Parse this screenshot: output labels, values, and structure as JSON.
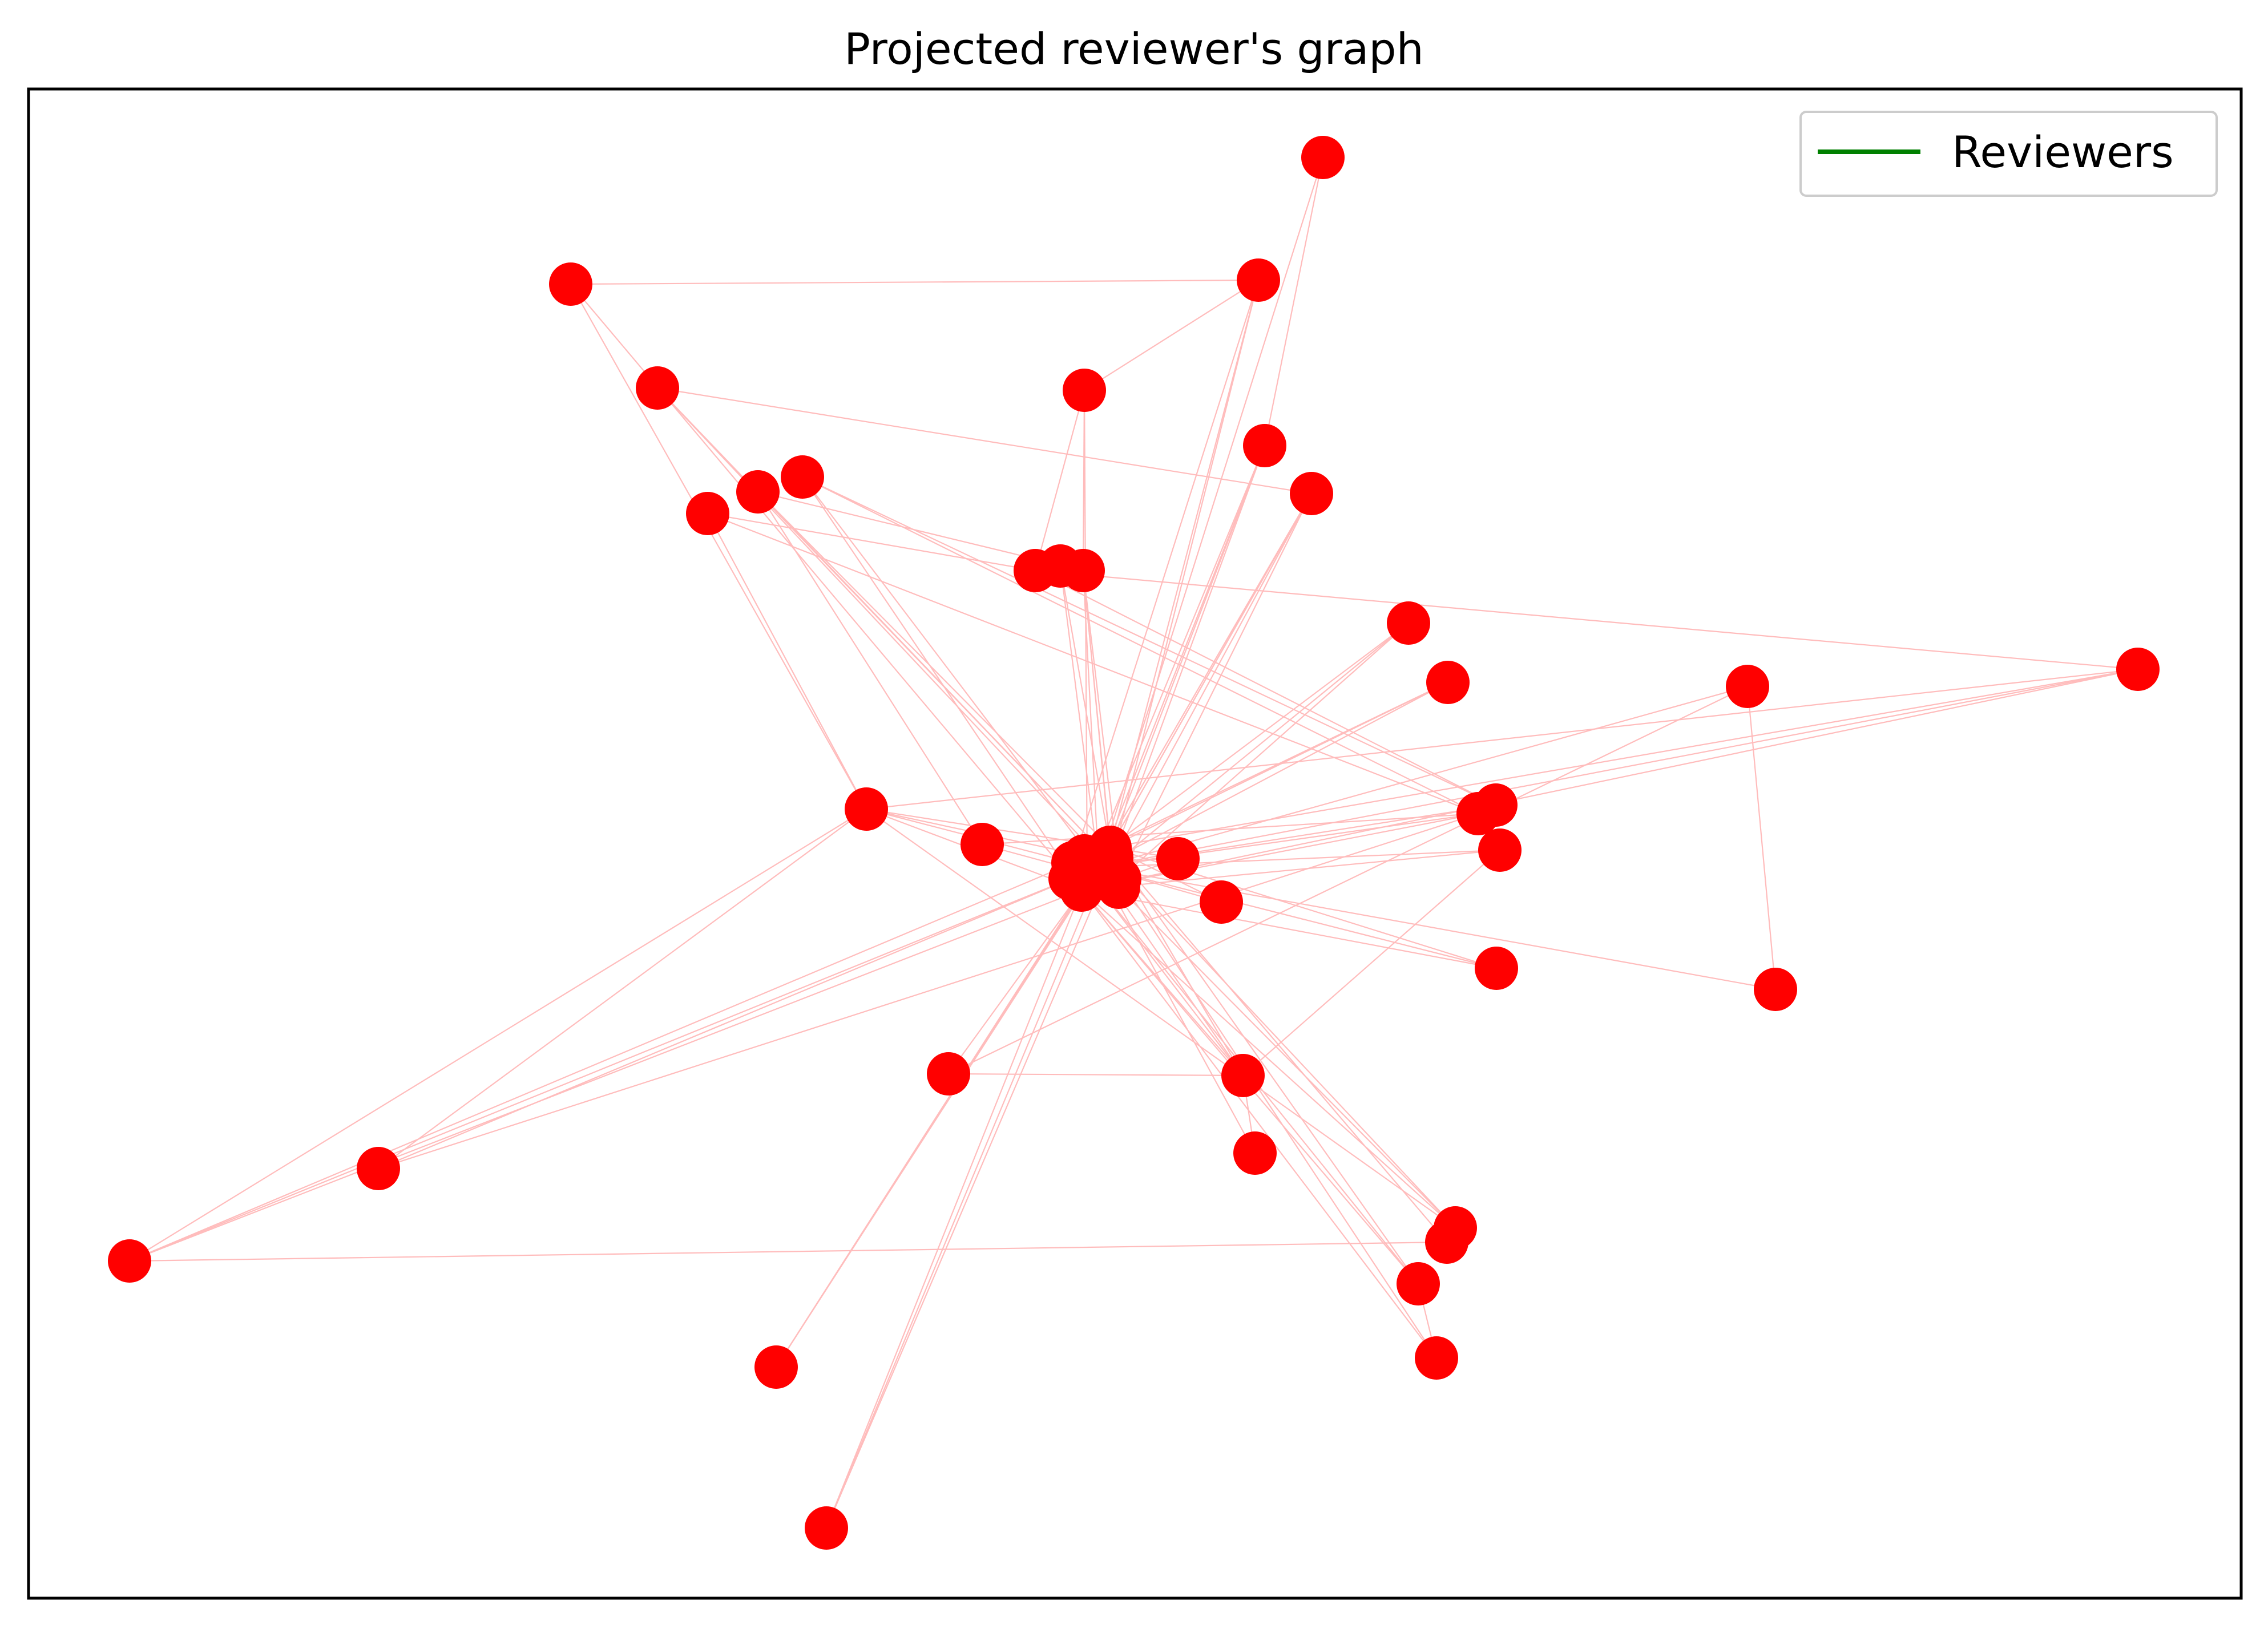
{
  "title": "Projected reviewer's graph",
  "legend": {
    "label": "Reviewers",
    "line_color": "#008000",
    "placement": "top-right"
  },
  "colors": {
    "node": "#ff0000",
    "edge": "#ffbcbc",
    "frame": "#000000",
    "legend_border": "#cccccc"
  },
  "axes": {
    "ticks": false,
    "grid": false
  },
  "graph": {
    "nodes": [
      {
        "id": "n1"
      },
      {
        "id": "n2"
      },
      {
        "id": "n3"
      },
      {
        "id": "n4"
      },
      {
        "id": "n5"
      },
      {
        "id": "n6"
      },
      {
        "id": "n7"
      },
      {
        "id": "n8"
      },
      {
        "id": "n9"
      },
      {
        "id": "n10"
      },
      {
        "id": "n11"
      },
      {
        "id": "n12"
      },
      {
        "id": "n13"
      },
      {
        "id": "n14"
      },
      {
        "id": "n15"
      },
      {
        "id": "n16"
      },
      {
        "id": "n17"
      },
      {
        "id": "n18"
      },
      {
        "id": "n19"
      },
      {
        "id": "n20"
      },
      {
        "id": "n21"
      },
      {
        "id": "n22"
      },
      {
        "id": "n23"
      },
      {
        "id": "n24"
      },
      {
        "id": "n25"
      },
      {
        "id": "n26"
      },
      {
        "id": "n27"
      },
      {
        "id": "n28"
      },
      {
        "id": "n29"
      },
      {
        "id": "n30"
      },
      {
        "id": "n31"
      },
      {
        "id": "n32"
      },
      {
        "id": "n33"
      },
      {
        "id": "n34"
      },
      {
        "id": "n35"
      },
      {
        "id": "n36"
      },
      {
        "id": "n37"
      },
      {
        "id": "n38"
      },
      {
        "id": "n39"
      },
      {
        "id": "n40"
      },
      {
        "id": "n41"
      },
      {
        "id": "n42"
      },
      {
        "id": "n43"
      },
      {
        "id": "n44"
      },
      {
        "id": "n45"
      },
      {
        "id": "n46"
      },
      {
        "id": "n47"
      },
      {
        "id": "n48"
      },
      {
        "id": "n49"
      }
    ],
    "edges": [
      [
        "n1",
        "n7"
      ],
      [
        "n1",
        "n9"
      ],
      [
        "n1",
        "n40"
      ],
      [
        "n2",
        "n10"
      ],
      [
        "n2",
        "n45"
      ],
      [
        "n3",
        "n11"
      ],
      [
        "n3",
        "n44"
      ],
      [
        "n3",
        "n42"
      ],
      [
        "n4",
        "n7"
      ],
      [
        "n4",
        "n13"
      ],
      [
        "n4",
        "n19"
      ],
      [
        "n5",
        "n8"
      ],
      [
        "n5",
        "n44"
      ],
      [
        "n5",
        "n41"
      ],
      [
        "n5",
        "n21"
      ],
      [
        "n6",
        "n19"
      ],
      [
        "n6",
        "n18"
      ],
      [
        "n6",
        "n40"
      ],
      [
        "n6",
        "n45"
      ],
      [
        "n7",
        "n44"
      ],
      [
        "n7",
        "n17"
      ],
      [
        "n7",
        "n28"
      ],
      [
        "n7",
        "n40"
      ],
      [
        "n7",
        "n39"
      ],
      [
        "n7",
        "n41"
      ],
      [
        "n7",
        "n29"
      ],
      [
        "n7",
        "n30"
      ],
      [
        "n8",
        "n44"
      ],
      [
        "n8",
        "n41"
      ],
      [
        "n8",
        "n42"
      ],
      [
        "n8",
        "n14"
      ],
      [
        "n8",
        "n45"
      ],
      [
        "n9",
        "n41"
      ],
      [
        "n9",
        "n44"
      ],
      [
        "n9",
        "n39"
      ],
      [
        "n10",
        "n41"
      ],
      [
        "n10",
        "n40"
      ],
      [
        "n10",
        "n44"
      ],
      [
        "n10",
        "n45"
      ],
      [
        "n11",
        "n42"
      ],
      [
        "n11",
        "n41"
      ],
      [
        "n11",
        "n44"
      ],
      [
        "n11",
        "n45"
      ],
      [
        "n11",
        "n40"
      ],
      [
        "n12",
        "n41"
      ],
      [
        "n12",
        "n42"
      ],
      [
        "n12",
        "n40"
      ],
      [
        "n13",
        "n14"
      ],
      [
        "n13",
        "n18"
      ],
      [
        "n13",
        "n17"
      ],
      [
        "n14",
        "n43"
      ],
      [
        "n14",
        "n9"
      ],
      [
        "n15",
        "n45"
      ],
      [
        "n15",
        "n41"
      ],
      [
        "n15",
        "n39"
      ],
      [
        "n16",
        "n45"
      ],
      [
        "n16",
        "n26"
      ],
      [
        "n16",
        "n25"
      ],
      [
        "n17",
        "n41"
      ],
      [
        "n17",
        "n40"
      ],
      [
        "n17",
        "n45"
      ],
      [
        "n18",
        "n19"
      ],
      [
        "n18",
        "n45"
      ],
      [
        "n20",
        "n24"
      ],
      [
        "n20",
        "n45"
      ],
      [
        "n20",
        "n40"
      ],
      [
        "n21",
        "n43"
      ],
      [
        "n22",
        "n45"
      ],
      [
        "n22",
        "n41"
      ],
      [
        "n23",
        "n45"
      ],
      [
        "n23",
        "n40"
      ],
      [
        "n23",
        "n41"
      ],
      [
        "n24",
        "n45"
      ],
      [
        "n24",
        "n40"
      ],
      [
        "n24",
        "n41"
      ],
      [
        "n24",
        "n43"
      ],
      [
        "n25",
        "n45"
      ],
      [
        "n26",
        "n45"
      ],
      [
        "n26",
        "n24"
      ],
      [
        "n27",
        "n24"
      ],
      [
        "n27",
        "n45"
      ],
      [
        "n28",
        "n45"
      ],
      [
        "n28",
        "n19"
      ],
      [
        "n29",
        "n41"
      ],
      [
        "n29",
        "n45"
      ],
      [
        "n29",
        "n40"
      ],
      [
        "n31",
        "n29"
      ],
      [
        "n31",
        "n41"
      ],
      [
        "n32",
        "n33"
      ],
      [
        "n32",
        "n41"
      ],
      [
        "n32",
        "n40"
      ],
      [
        "n32",
        "n43"
      ],
      [
        "n33",
        "n42"
      ],
      [
        "n33",
        "n40"
      ],
      [
        "n34",
        "n41"
      ],
      [
        "n34",
        "n45"
      ],
      [
        "n34",
        "n40"
      ],
      [
        "n35",
        "n41"
      ],
      [
        "n35",
        "n44"
      ],
      [
        "n35",
        "n40"
      ],
      [
        "n36",
        "n41"
      ],
      [
        "n36",
        "n45"
      ],
      [
        "n37",
        "n41"
      ],
      [
        "n37",
        "n42"
      ],
      [
        "n38",
        "n45"
      ],
      [
        "n38",
        "n41"
      ],
      [
        "n19",
        "n45"
      ],
      [
        "n19",
        "n40"
      ],
      [
        "n19",
        "n21"
      ],
      [
        "n30",
        "n44"
      ],
      [
        "n30",
        "n45"
      ],
      [
        "n30",
        "n40"
      ]
    ]
  }
}
